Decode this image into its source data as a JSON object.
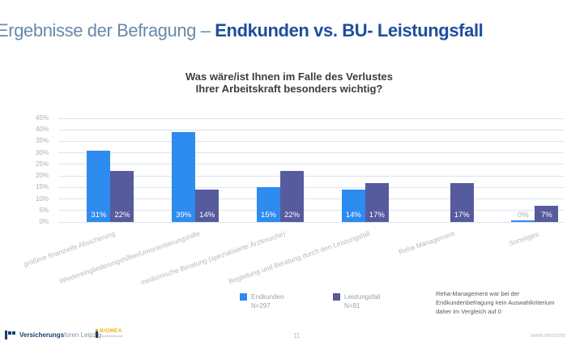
{
  "slide": {
    "title": {
      "regular": "Ergebnisse der Befragung – ",
      "bold": "Endkunden vs. BU- Leistungsfall"
    },
    "page_number": "11",
    "footer_url": "www.versiche",
    "logos": {
      "vfl_bold": "Versicherungs",
      "vfl_light": "foren Leipzig",
      "partner_name": "BIOMEX",
      "partner_sub": "Expertenservice"
    }
  },
  "chart_data": {
    "type": "bar",
    "title_lines": [
      "Was wäre/ist Ihnen im Falle des Verlustes",
      "Ihrer Arbeitskraft besonders wichtig?"
    ],
    "categories": [
      "größere finanzielle Absicherung",
      "Wiedereingliederungshilfen/Umorientierungshilfe",
      "medizinische Beratung (spezialisierte Ärztesuche)",
      "Begleitung und Beratung durch den Leistungsfall",
      "Reha Management",
      "Sonstiges:"
    ],
    "series": [
      {
        "name": "Endkunden",
        "n_label": "N=297",
        "color": "#2e8bf0",
        "values": [
          31,
          39,
          15,
          14,
          null,
          0
        ]
      },
      {
        "name": "Leistungsfall",
        "n_label": "N=91",
        "color": "#565b9d",
        "values": [
          22,
          14,
          22,
          17,
          17,
          7
        ]
      }
    ],
    "ylim": [
      0,
      45
    ],
    "ytick_step": 5,
    "ytick_suffix": "%",
    "grid": true,
    "legend_position": "bottom",
    "annotation": "Reha-Management war bei der Endkundenbefragung kein Auswahlkriterium daher im Vergleich auf 0",
    "colors": {
      "gridline": "#dce4f0",
      "tick_label": "#a8aeb6",
      "bar_label": "#ffffff",
      "zero_label": "#a8aeb6",
      "category_label": "#b3b9c1"
    }
  }
}
